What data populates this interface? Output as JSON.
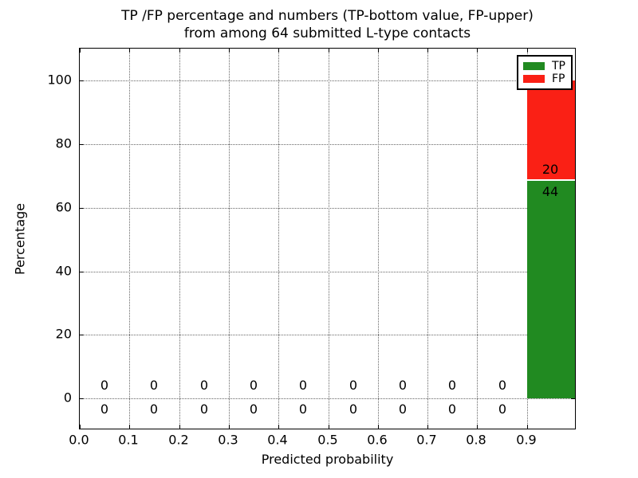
{
  "chart_data": {
    "type": "bar",
    "stacked": true,
    "title_line1": "TP /FP percentage and numbers (TP-bottom value, FP-upper)",
    "title_line2": "from among 64 submitted L-type contacts",
    "xlabel": "Predicted probability",
    "ylabel": "Percentage",
    "xlim": [
      0.0,
      1.0
    ],
    "ylim": [
      -10,
      110
    ],
    "grid": "dotted",
    "legend_position": "upper right",
    "x_ticks": [
      "0.0",
      "0.1",
      "0.2",
      "0.3",
      "0.4",
      "0.5",
      "0.6",
      "0.7",
      "0.8",
      "0.9"
    ],
    "y_ticks": [
      "0",
      "20",
      "40",
      "60",
      "80",
      "100"
    ],
    "bin_edges": [
      0.0,
      0.1,
      0.2,
      0.3,
      0.4,
      0.5,
      0.6,
      0.7,
      0.8,
      0.9,
      1.0
    ],
    "total_contacts": 64,
    "series": [
      {
        "name": "TP",
        "color": "#218a21",
        "counts": [
          0,
          0,
          0,
          0,
          0,
          0,
          0,
          0,
          0,
          44
        ],
        "last_bin_percent": 68.75
      },
      {
        "name": "FP",
        "color": "#fa2015",
        "counts": [
          0,
          0,
          0,
          0,
          0,
          0,
          0,
          0,
          0,
          20
        ],
        "last_bin_percent": 31.25
      }
    ],
    "legend": {
      "entries": [
        "TP",
        "FP"
      ]
    }
  }
}
